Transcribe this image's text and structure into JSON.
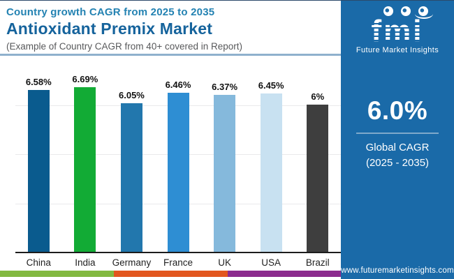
{
  "header": {
    "kicker": "Country growth CAGR from 2025 to 2035",
    "title": "Antioxidant Premix Market",
    "subtitle": "(Example of Country CAGR from 40+ covered in Report)"
  },
  "chart_data": {
    "type": "bar",
    "title": "Antioxidant Premix Market — Country growth CAGR from 2025 to 2035",
    "categories": [
      "China",
      "India",
      "Germany",
      "France",
      "UK",
      "USA",
      "Brazil"
    ],
    "values": [
      6.58,
      6.69,
      6.05,
      6.46,
      6.37,
      6.45,
      6.0
    ],
    "value_labels": [
      "6.58%",
      "6.69%",
      "6.05%",
      "6.46%",
      "6.37%",
      "6.45%",
      "6%"
    ],
    "bar_colors": [
      "#0a5b8e",
      "#12ab35",
      "#2277ad",
      "#2e8ed3",
      "#85b9dc",
      "#c8e1f1",
      "#3e3e3e"
    ],
    "xlabel": "",
    "ylabel": "",
    "ylim": [
      0,
      8
    ],
    "gridline_values": [
      2,
      4,
      6
    ],
    "grid": "horizontal-faint",
    "legend": "none"
  },
  "panel": {
    "bg_color": "#1a6aa8",
    "logo": {
      "brand": "fmi",
      "brand_caption": "Future Market Insights"
    },
    "stat_value": "6.0%",
    "stat_label_line1": "Global CAGR",
    "stat_label_line2": "(2025 - 2035)",
    "website": "www.futuremarketinsights.com"
  },
  "footer": {
    "stripe_colors": [
      "#82b940",
      "#e2561e",
      "#8c2b8e"
    ]
  }
}
